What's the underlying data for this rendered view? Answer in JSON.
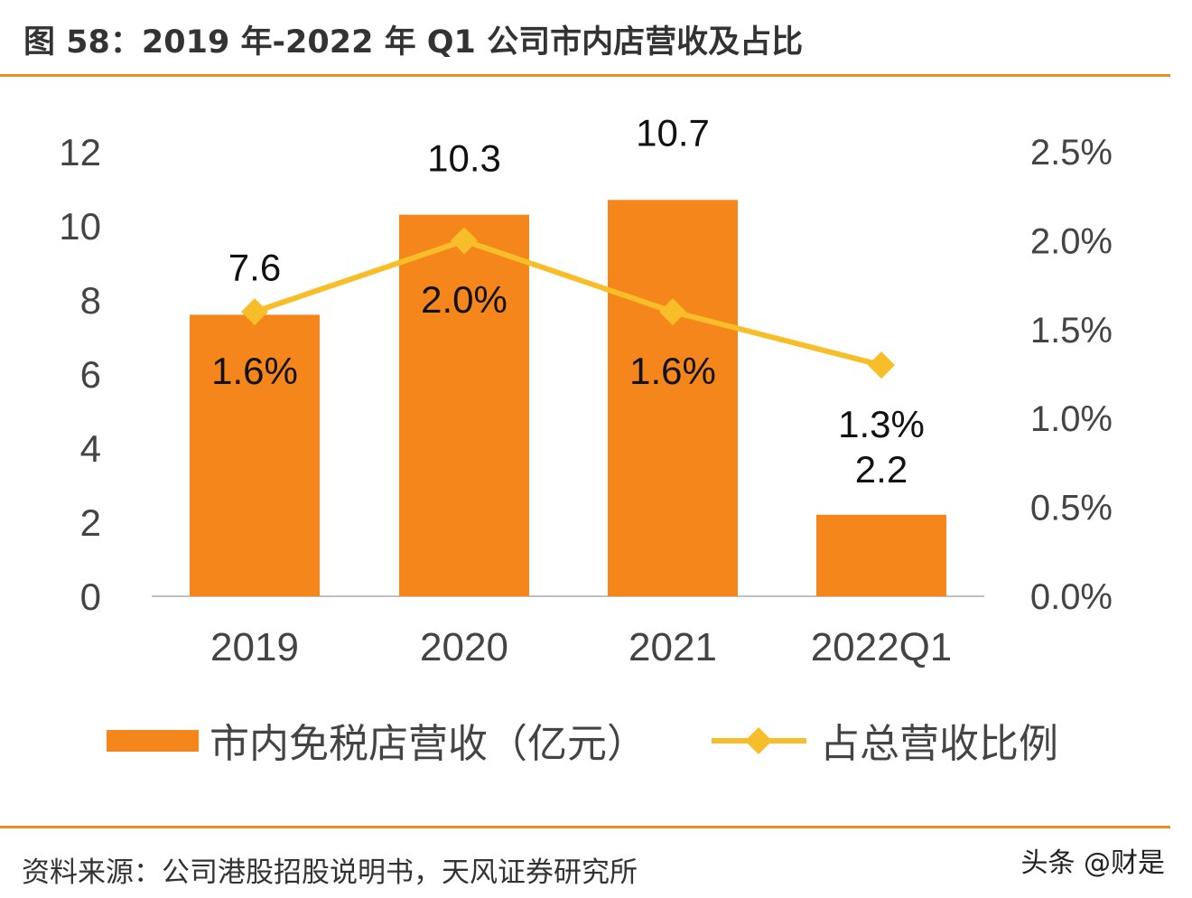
{
  "title": "图 58：2019 年-2022 年 Q1 公司市内店营收及占比",
  "source": "资料来源：公司港股招股说明书，天风证券研究所",
  "watermark": "头条 @财是",
  "colors": {
    "bar": "#F5861C",
    "line": "#F7BE2A",
    "rule": "#F08A1E"
  },
  "chart_data": {
    "type": "bar+line",
    "categories": [
      "2019",
      "2020",
      "2021",
      "2022Q1"
    ],
    "series": [
      {
        "name": "市内免税店营收（亿元）",
        "type": "bar",
        "axis": "left",
        "values": [
          7.6,
          10.3,
          10.7,
          2.2
        ],
        "labels": [
          "7.6",
          "10.3",
          "10.7",
          "2.2"
        ]
      },
      {
        "name": "占总营收比例",
        "type": "line",
        "axis": "right",
        "values": [
          1.6,
          2.0,
          1.6,
          1.3
        ],
        "labels": [
          "1.6%",
          "2.0%",
          "1.6%",
          "1.3%"
        ]
      }
    ],
    "left_axis": {
      "ylim": [
        0,
        12
      ],
      "ticks": [
        "0",
        "2",
        "4",
        "6",
        "8",
        "10",
        "12"
      ]
    },
    "right_axis": {
      "ylim": [
        0,
        2.5
      ],
      "ticks": [
        "0.0%",
        "0.5%",
        "1.0%",
        "1.5%",
        "2.0%",
        "2.5%"
      ]
    },
    "grid": false,
    "legend": "bottom"
  }
}
